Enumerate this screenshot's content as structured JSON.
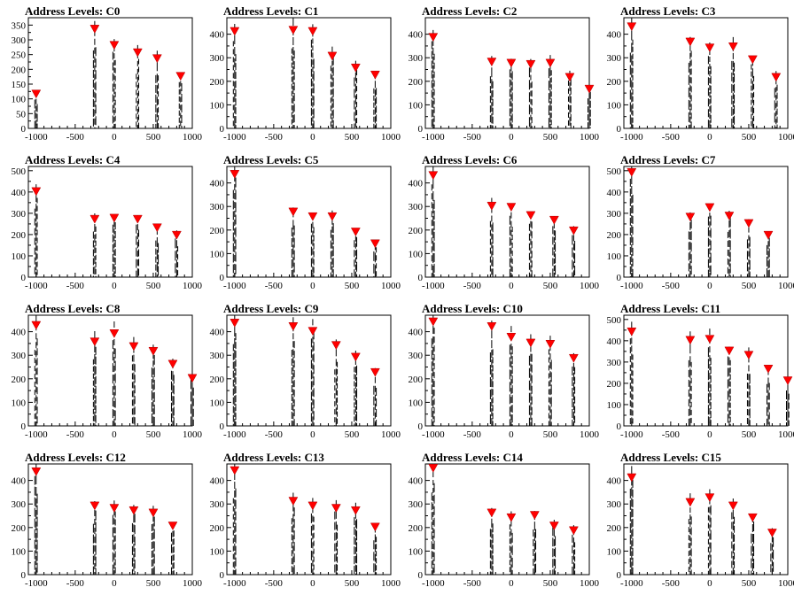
{
  "chart_data": [
    {
      "type": "scatter",
      "title": "Address Levels: C0",
      "x": [
        -1000,
        -250,
        0,
        300,
        550,
        850
      ],
      "y": [
        115,
        335,
        280,
        255,
        235,
        175
      ],
      "ylim": [
        0,
        375
      ],
      "yticks": [
        0,
        50,
        100,
        150,
        200,
        250,
        300,
        350
      ],
      "xlim": [
        -1100,
        1000
      ],
      "xticks": [
        -1000,
        -500,
        0,
        500,
        1000
      ],
      "marker_color": "#ff0000"
    },
    {
      "type": "scatter",
      "title": "Address Levels: C1",
      "x": [
        -1000,
        -250,
        0,
        250,
        550,
        800
      ],
      "y": [
        410,
        415,
        410,
        305,
        255,
        225
      ],
      "ylim": [
        0,
        470
      ],
      "yticks": [
        0,
        100,
        200,
        300,
        400
      ],
      "xlim": [
        -1100,
        1000
      ],
      "xticks": [
        -1000,
        -500,
        0,
        500,
        1000
      ],
      "marker_color": "#ff0000"
    },
    {
      "type": "scatter",
      "title": "Address Levels: C2",
      "x": [
        -1000,
        -250,
        0,
        250,
        500,
        750,
        1000
      ],
      "y": [
        385,
        280,
        275,
        270,
        275,
        215,
        165
      ],
      "ylim": [
        0,
        470
      ],
      "yticks": [
        0,
        100,
        200,
        300,
        400
      ],
      "xlim": [
        -1100,
        1000
      ],
      "xticks": [
        -1000,
        -500,
        0,
        500,
        1000
      ],
      "marker_color": "#ff0000"
    },
    {
      "type": "scatter",
      "title": "Address Levels: C3",
      "x": [
        -1000,
        -250,
        0,
        300,
        550,
        850
      ],
      "y": [
        430,
        365,
        340,
        345,
        290,
        215
      ],
      "ylim": [
        0,
        470
      ],
      "yticks": [
        0,
        100,
        200,
        300,
        400
      ],
      "xlim": [
        -1100,
        1000
      ],
      "xticks": [
        -1000,
        -500,
        0,
        500,
        1000
      ],
      "marker_color": "#ff0000"
    },
    {
      "type": "scatter",
      "title": "Address Levels: C4",
      "x": [
        -1000,
        -250,
        0,
        300,
        550,
        800
      ],
      "y": [
        400,
        270,
        275,
        270,
        230,
        195
      ],
      "ylim": [
        0,
        520
      ],
      "yticks": [
        0,
        100,
        200,
        300,
        400,
        500
      ],
      "xlim": [
        -1100,
        1000
      ],
      "xticks": [
        -1000,
        -500,
        0,
        500,
        1000
      ],
      "marker_color": "#ff0000"
    },
    {
      "type": "scatter",
      "title": "Address Levels: C5",
      "x": [
        -1000,
        -250,
        0,
        250,
        550,
        800
      ],
      "y": [
        435,
        275,
        255,
        255,
        190,
        140
      ],
      "ylim": [
        0,
        470
      ],
      "yticks": [
        0,
        100,
        200,
        300,
        400
      ],
      "xlim": [
        -1100,
        1000
      ],
      "xticks": [
        -1000,
        -500,
        0,
        500,
        1000
      ],
      "marker_color": "#ff0000"
    },
    {
      "type": "scatter",
      "title": "Address Levels: C6",
      "x": [
        -1000,
        -250,
        0,
        250,
        550,
        800
      ],
      "y": [
        430,
        300,
        295,
        260,
        240,
        195
      ],
      "ylim": [
        0,
        470
      ],
      "yticks": [
        0,
        100,
        200,
        300,
        400
      ],
      "xlim": [
        -1100,
        1000
      ],
      "xticks": [
        -1000,
        -500,
        0,
        500,
        1000
      ],
      "marker_color": "#ff0000"
    },
    {
      "type": "scatter",
      "title": "Address Levels: C7",
      "x": [
        -1000,
        -250,
        0,
        250,
        500,
        750
      ],
      "y": [
        490,
        280,
        325,
        285,
        250,
        195
      ],
      "ylim": [
        0,
        520
      ],
      "yticks": [
        0,
        100,
        200,
        300,
        400,
        500
      ],
      "xlim": [
        -1100,
        1000
      ],
      "xticks": [
        -1000,
        -500,
        0,
        500,
        1000
      ],
      "marker_color": "#ff0000"
    },
    {
      "type": "scatter",
      "title": "Address Levels: C8",
      "x": [
        -1000,
        -250,
        0,
        250,
        500,
        750,
        1000
      ],
      "y": [
        425,
        355,
        390,
        335,
        315,
        260,
        200
      ],
      "ylim": [
        0,
        470
      ],
      "yticks": [
        0,
        100,
        200,
        300,
        400
      ],
      "xlim": [
        -1100,
        1000
      ],
      "xticks": [
        -1000,
        -500,
        0,
        500,
        1000
      ],
      "marker_color": "#ff0000"
    },
    {
      "type": "scatter",
      "title": "Address Levels: C9",
      "x": [
        -1000,
        -250,
        0,
        300,
        550,
        800
      ],
      "y": [
        435,
        420,
        400,
        340,
        290,
        225
      ],
      "ylim": [
        0,
        470
      ],
      "yticks": [
        0,
        100,
        200,
        300,
        400
      ],
      "xlim": [
        -1100,
        1000
      ],
      "xticks": [
        -1000,
        -500,
        0,
        500,
        1000
      ],
      "marker_color": "#ff0000"
    },
    {
      "type": "scatter",
      "title": "Address Levels: C10",
      "x": [
        -1000,
        -250,
        0,
        250,
        500,
        800
      ],
      "y": [
        440,
        420,
        375,
        350,
        345,
        285
      ],
      "ylim": [
        0,
        470
      ],
      "yticks": [
        0,
        100,
        200,
        300,
        400
      ],
      "xlim": [
        -1100,
        1000
      ],
      "xticks": [
        -1000,
        -500,
        0,
        500,
        1000
      ],
      "marker_color": "#ff0000"
    },
    {
      "type": "scatter",
      "title": "Address Levels: C11",
      "x": [
        -1000,
        -250,
        0,
        250,
        500,
        750,
        1000
      ],
      "y": [
        440,
        400,
        405,
        350,
        330,
        265,
        210
      ],
      "ylim": [
        0,
        520
      ],
      "yticks": [
        0,
        100,
        200,
        300,
        400,
        500
      ],
      "xlim": [
        -1100,
        1000
      ],
      "xticks": [
        -1000,
        -500,
        0,
        500,
        1000
      ],
      "marker_color": "#ff0000"
    },
    {
      "type": "scatter",
      "title": "Address Levels: C12",
      "x": [
        -1000,
        -250,
        0,
        250,
        500,
        750
      ],
      "y": [
        435,
        290,
        280,
        270,
        260,
        205
      ],
      "ylim": [
        0,
        470
      ],
      "yticks": [
        0,
        100,
        200,
        300,
        400
      ],
      "xlim": [
        -1100,
        1000
      ],
      "xticks": [
        -1000,
        -500,
        0,
        500,
        1000
      ],
      "marker_color": "#ff0000"
    },
    {
      "type": "scatter",
      "title": "Address Levels: C13",
      "x": [
        -1000,
        -250,
        0,
        300,
        550,
        800
      ],
      "y": [
        440,
        310,
        290,
        280,
        270,
        200
      ],
      "ylim": [
        0,
        470
      ],
      "yticks": [
        0,
        100,
        200,
        300,
        400
      ],
      "xlim": [
        -1100,
        1000
      ],
      "xticks": [
        -1000,
        -500,
        0,
        500,
        1000
      ],
      "marker_color": "#ff0000"
    },
    {
      "type": "scatter",
      "title": "Address Levels: C14",
      "x": [
        -1000,
        -250,
        0,
        300,
        550,
        800
      ],
      "y": [
        450,
        260,
        240,
        250,
        205,
        185
      ],
      "ylim": [
        0,
        470
      ],
      "yticks": [
        0,
        100,
        200,
        300,
        400
      ],
      "xlim": [
        -1100,
        1000
      ],
      "xticks": [
        -1000,
        -500,
        0,
        500,
        1000
      ],
      "marker_color": "#ff0000"
    },
    {
      "type": "scatter",
      "title": "Address Levels: C15",
      "x": [
        -1000,
        -250,
        0,
        300,
        550,
        800
      ],
      "y": [
        410,
        305,
        325,
        290,
        240,
        175
      ],
      "ylim": [
        0,
        470
      ],
      "yticks": [
        0,
        100,
        200,
        300,
        400
      ],
      "xlim": [
        -1100,
        1000
      ],
      "xticks": [
        -1000,
        -500,
        0,
        500,
        1000
      ],
      "marker_color": "#ff0000"
    }
  ]
}
